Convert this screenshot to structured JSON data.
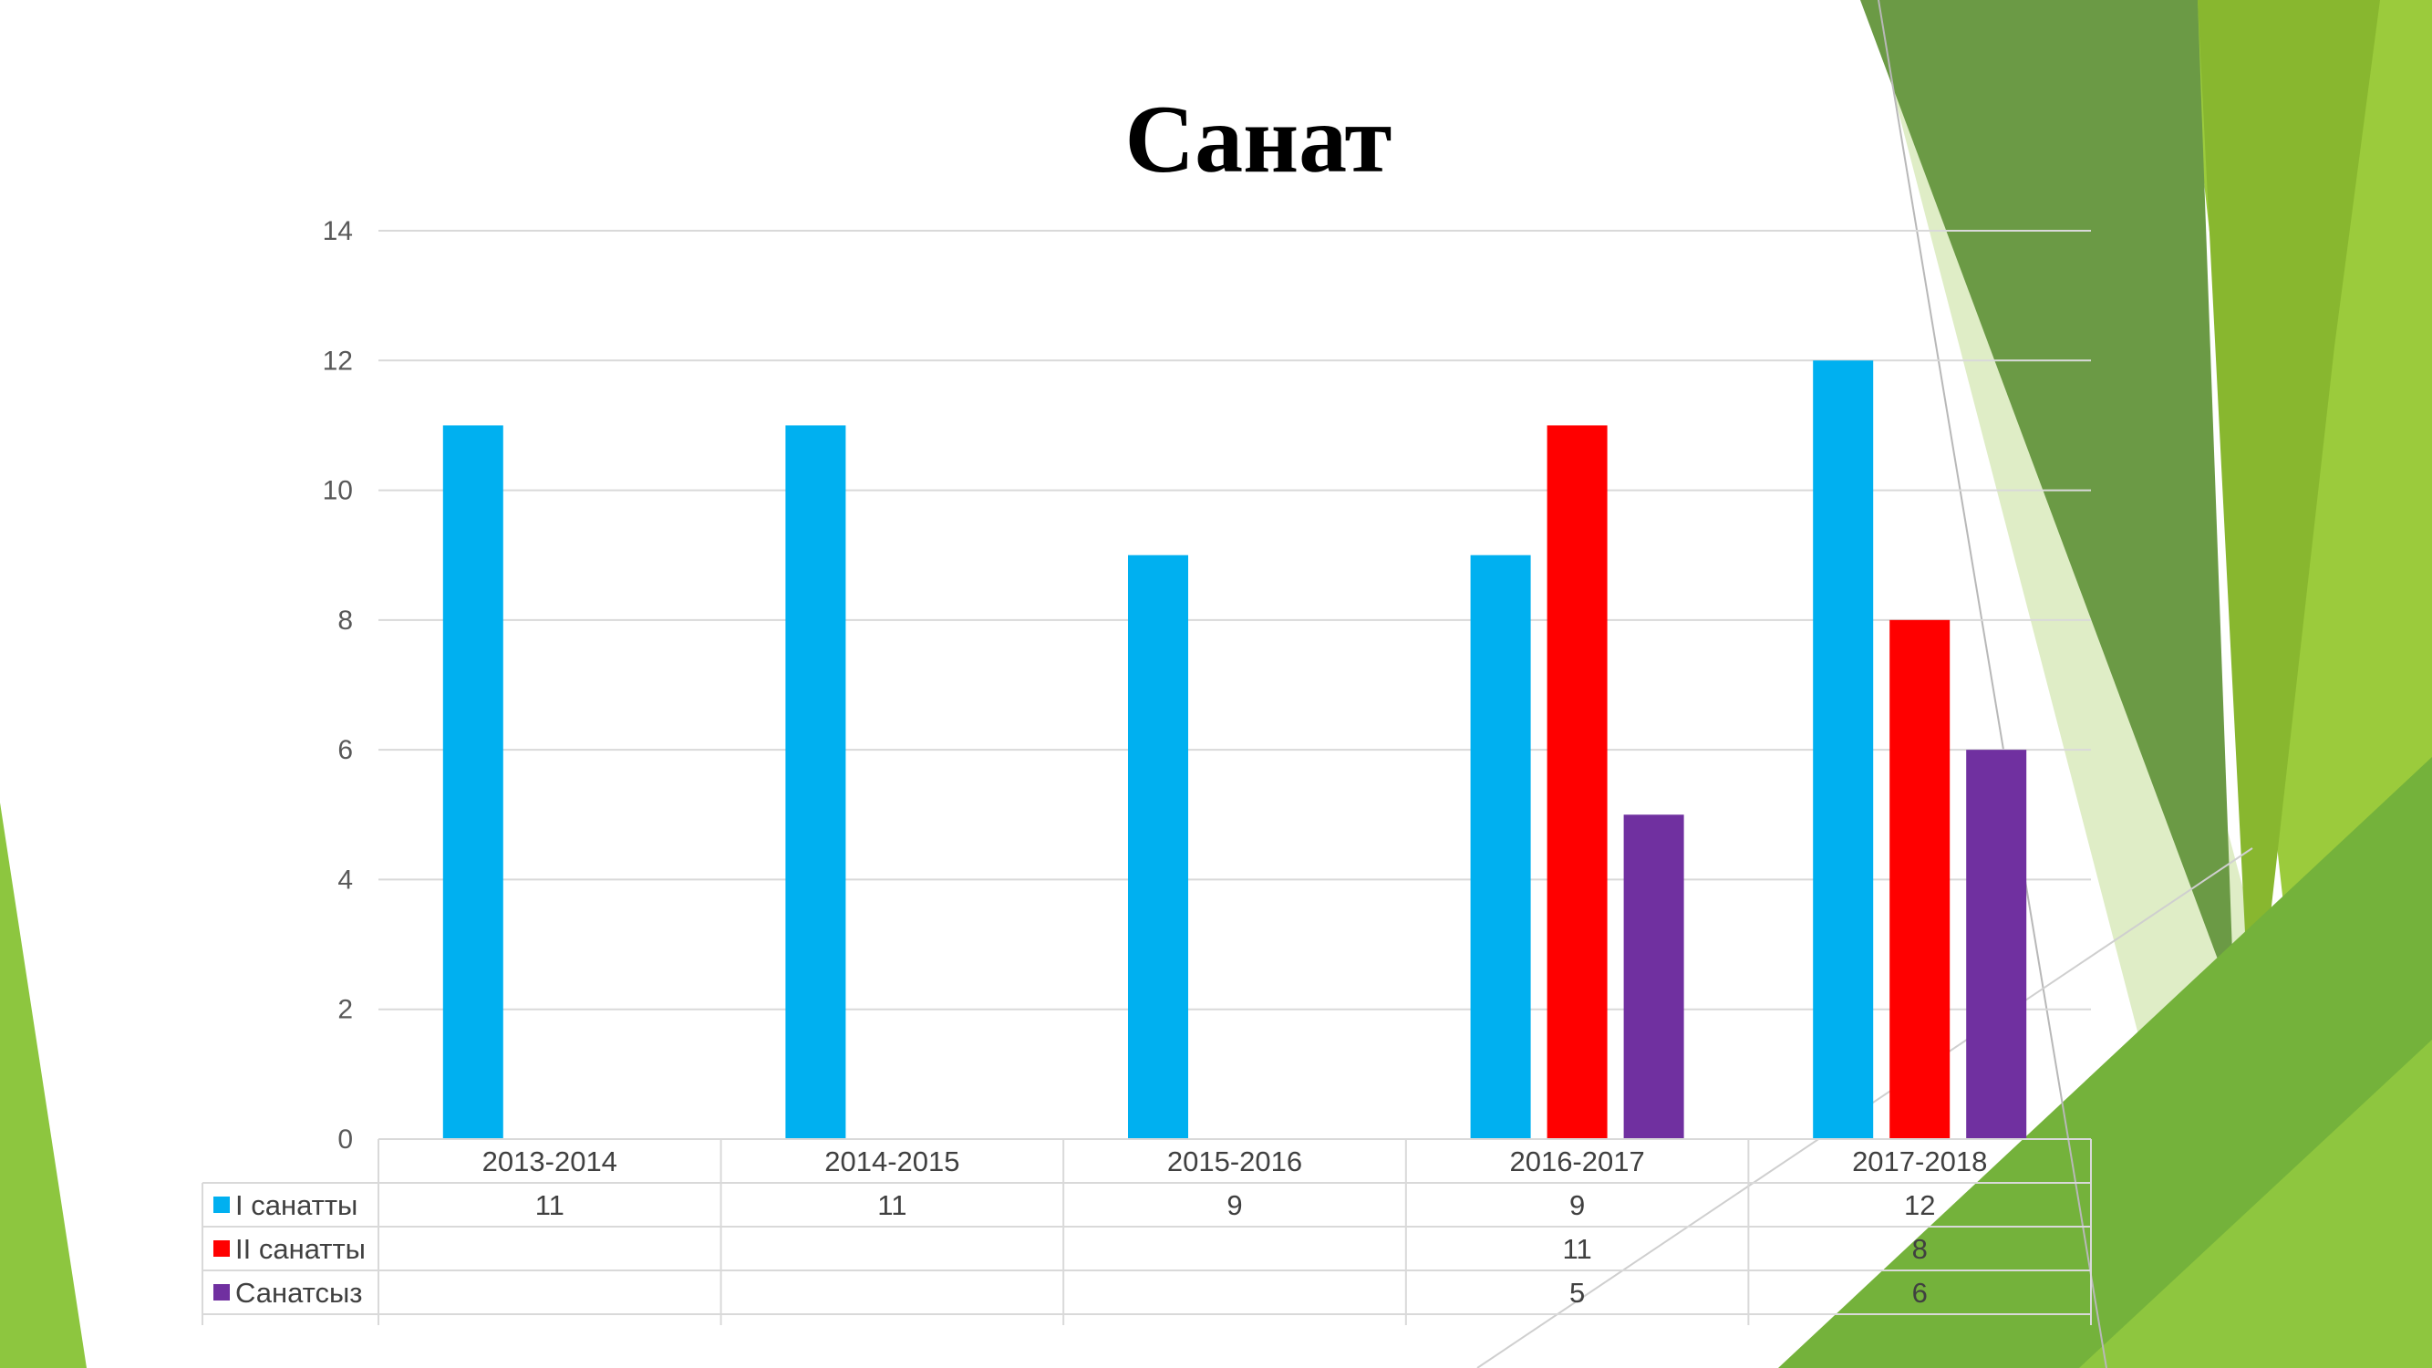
{
  "chart_data": {
    "type": "bar",
    "title": "Санат",
    "categories": [
      "2013-2014",
      "2014-2015",
      "2015-2016",
      "2016-2017",
      "2017-2018"
    ],
    "series": [
      {
        "name": "I санатты",
        "color": "#00B0F0",
        "values": [
          11,
          11,
          9,
          9,
          12
        ]
      },
      {
        "name": "II санатты",
        "color": "#FF0000",
        "values": [
          null,
          null,
          null,
          11,
          8
        ]
      },
      {
        "name": "Санатсыз",
        "color": "#7030A0",
        "values": [
          null,
          null,
          null,
          5,
          6
        ]
      }
    ],
    "ylim": [
      0,
      14
    ],
    "yticks": [
      0,
      2,
      4,
      6,
      8,
      10,
      12,
      14
    ],
    "grid": true,
    "legend": "data-table",
    "data_table": true
  },
  "theme": {
    "accent_dark": "#5A8F29",
    "accent_mid": "#76B33A",
    "accent_light": "#9BCB3C"
  }
}
